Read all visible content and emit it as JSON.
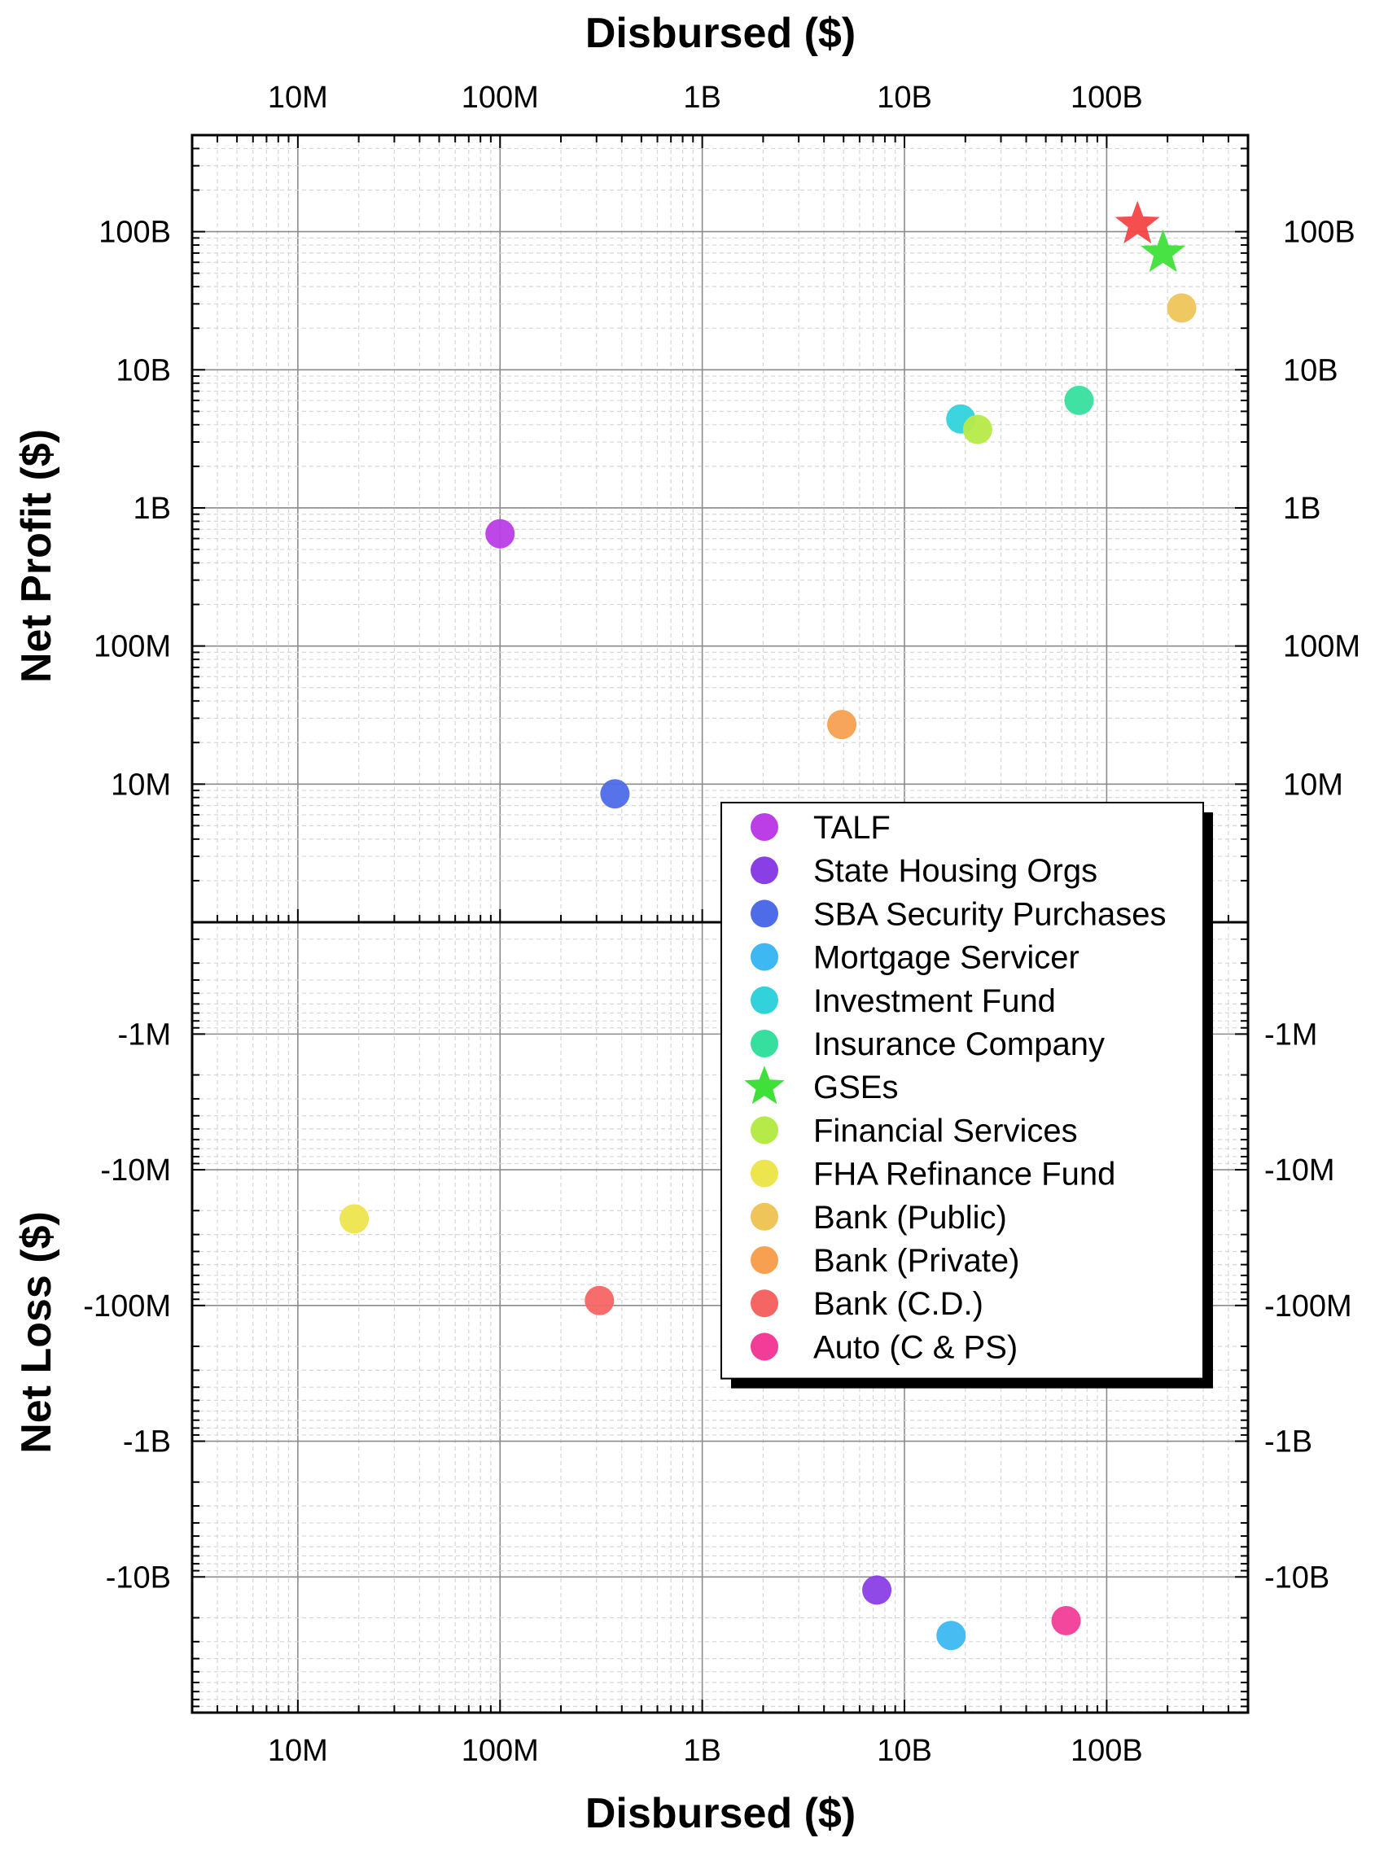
{
  "chart_data": {
    "type": "scatter",
    "title": "",
    "xlabel_top": "Disbursed ($)",
    "xlabel_bottom": "Disbursed ($)",
    "ylabel_top": "Net Profit ($)",
    "ylabel_bottom": "Net Loss ($)",
    "x_scale": "log",
    "xlim": [
      3000000,
      500000000000
    ],
    "x_ticks": [
      {
        "value": 10000000,
        "label": "10M"
      },
      {
        "value": 100000000,
        "label": "100M"
      },
      {
        "value": 1000000000,
        "label": "1B"
      },
      {
        "value": 10000000000,
        "label": "10B"
      },
      {
        "value": 100000000000,
        "label": "100B"
      }
    ],
    "profit_panel": {
      "y_scale": "log",
      "ylim": [
        1000000,
        500000000000
      ],
      "y_ticks": [
        {
          "value": 10000000,
          "label": "10M"
        },
        {
          "value": 100000000,
          "label": "100M"
        },
        {
          "value": 1000000000,
          "label": "1B"
        },
        {
          "value": 10000000000,
          "label": "10B"
        },
        {
          "value": 100000000000,
          "label": "100B"
        }
      ]
    },
    "loss_panel": {
      "y_scale": "log (negative values)",
      "ylim": [
        -100000000000,
        -150000
      ],
      "y_ticks": [
        {
          "value": -1000000,
          "label": "-1M"
        },
        {
          "value": -10000000,
          "label": "-10M"
        },
        {
          "value": -100000000,
          "label": "-100M"
        },
        {
          "value": -1000000000,
          "label": "-1B"
        },
        {
          "value": -10000000000,
          "label": "-10B"
        }
      ]
    },
    "legend_position": "right-center",
    "series": [
      {
        "name": "TALF",
        "color": "#bb3ee6",
        "marker": "circle",
        "points": [
          {
            "x": 100000000,
            "y": 650000000
          }
        ]
      },
      {
        "name": "State Housing Orgs",
        "color": "#8a3ee6",
        "marker": "circle",
        "points": [
          {
            "x": 7300000000,
            "y": -12500000000
          }
        ]
      },
      {
        "name": "SBA Security Purchases",
        "color": "#4e6be8",
        "marker": "circle",
        "points": [
          {
            "x": 370000000,
            "y": 8500000
          }
        ]
      },
      {
        "name": "Mortgage Servicer",
        "color": "#3db8f2",
        "marker": "circle",
        "points": [
          {
            "x": 17000000000,
            "y": -27000000000
          }
        ]
      },
      {
        "name": "Investment Fund",
        "color": "#32d2dc",
        "marker": "circle",
        "points": [
          {
            "x": 19000000000,
            "y": 4400000000
          }
        ]
      },
      {
        "name": "Insurance Company",
        "color": "#37df9e",
        "marker": "circle",
        "points": [
          {
            "x": 73000000000,
            "y": 6000000000
          }
        ]
      },
      {
        "name": "GSEs",
        "color": "#3fe03a",
        "marker": "star",
        "points": [
          {
            "x": 190000000000,
            "y": 70000000000
          }
        ]
      },
      {
        "name": "Financial Services",
        "color": "#b6ea48",
        "marker": "circle",
        "points": [
          {
            "x": 23000000000,
            "y": 3700000000
          }
        ]
      },
      {
        "name": "FHA Refinance Fund",
        "color": "#ede54d",
        "marker": "circle",
        "points": [
          {
            "x": 19000000,
            "y": -23000000
          }
        ]
      },
      {
        "name": "Bank (Public)",
        "color": "#efc55a",
        "marker": "circle",
        "points": [
          {
            "x": 235000000000,
            "y": 28000000000
          }
        ]
      },
      {
        "name": "Bank (Private)",
        "color": "#f7a052",
        "marker": "circle",
        "points": [
          {
            "x": 4900000000,
            "y": 27000000
          }
        ]
      },
      {
        "name": "Bank (C.D.)",
        "color": "#f56564",
        "marker": "circle",
        "points": [
          {
            "x": 310000000,
            "y": -92000000
          }
        ]
      },
      {
        "name": "Auto (C & PS)",
        "color": "#f23c98",
        "marker": "circle",
        "points": [
          {
            "x": 63000000000,
            "y": -21000000000
          }
        ]
      },
      {
        "name": "",
        "color": "#f34545",
        "marker": "star",
        "points": [
          {
            "x": 142000000000,
            "y": 113000000000
          }
        ]
      }
    ]
  }
}
